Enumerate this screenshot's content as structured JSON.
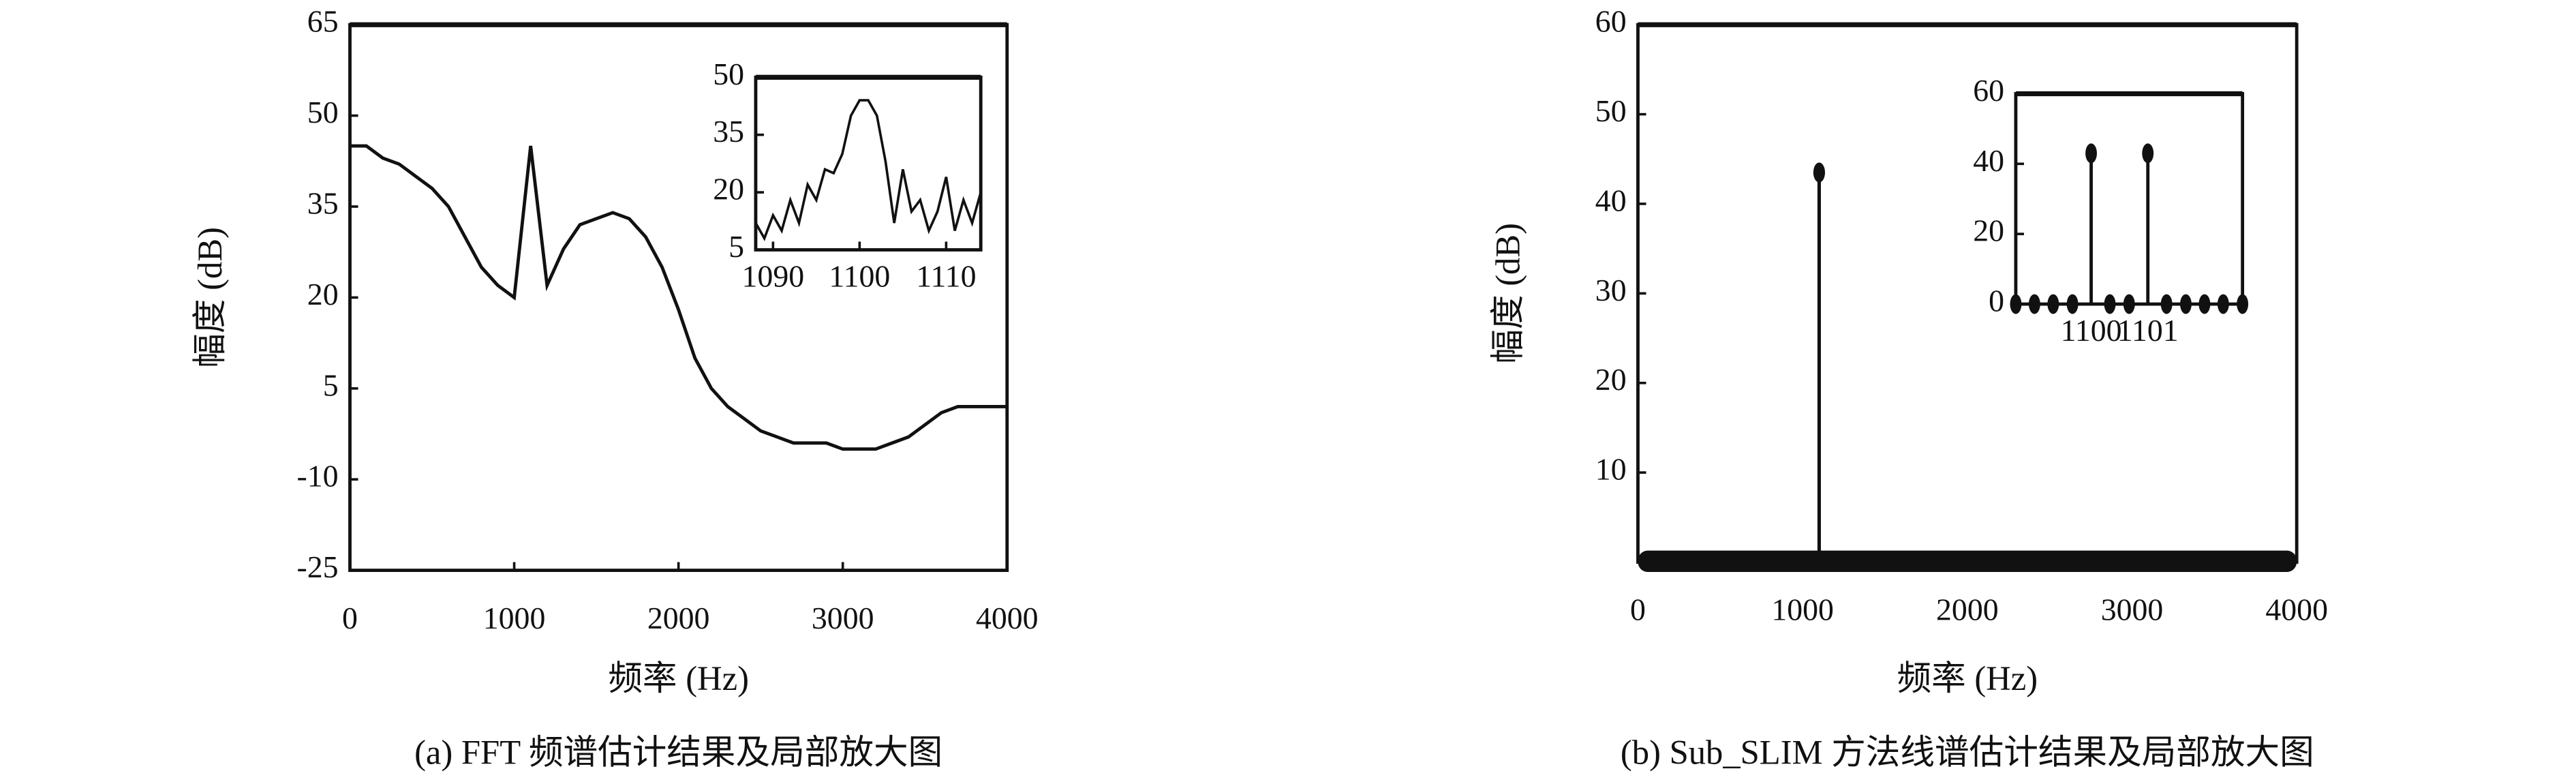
{
  "chart_data": [
    {
      "type": "line",
      "xlabel": "频率 (Hz)",
      "ylabel": "幅度 (dB)",
      "caption": "(a) FFT 频谱估计结果及局部放大图",
      "xlim": [
        0,
        4000
      ],
      "ylim": [
        -25,
        65
      ],
      "xticks": [
        0,
        1000,
        2000,
        3000,
        4000
      ],
      "yticks": [
        -25,
        -10,
        5,
        20,
        35,
        50,
        65
      ],
      "series": [
        {
          "color": "#111111",
          "x": [
            0,
            100,
            200,
            300,
            400,
            500,
            600,
            700,
            800,
            900,
            1000,
            1100,
            1200,
            1300,
            1400,
            1500,
            1600,
            1700,
            1800,
            1900,
            2000,
            2100,
            2200,
            2300,
            2400,
            2500,
            2600,
            2700,
            2800,
            2900,
            3000,
            3100,
            3200,
            3300,
            3400,
            3500,
            3600,
            3700,
            3800,
            3900,
            4000
          ],
          "values": [
            45,
            45,
            43,
            42,
            40,
            38,
            35,
            30,
            25,
            22,
            20,
            45,
            22,
            28,
            32,
            33,
            34,
            33,
            30,
            25,
            18,
            10,
            5,
            2,
            0,
            -2,
            -3,
            -4,
            -4,
            -4,
            -5,
            -5,
            -5,
            -4,
            -3,
            -1,
            1,
            2,
            2,
            2,
            2
          ]
        }
      ]
    },
    {
      "type": "line",
      "xlim": [
        1088,
        1114
      ],
      "ylim": [
        5,
        50
      ],
      "xticks": [
        1090,
        1100,
        1110
      ],
      "yticks": [
        5,
        20,
        35,
        50
      ],
      "series": [
        {
          "color": "#111111",
          "x": [
            1088,
            1089,
            1090,
            1091,
            1092,
            1093,
            1094,
            1095,
            1096,
            1097,
            1098,
            1099,
            1100,
            1101,
            1102,
            1103,
            1104,
            1105,
            1106,
            1107,
            1108,
            1109,
            1110,
            1111,
            1112,
            1113,
            1114
          ],
          "values": [
            12,
            8,
            14,
            10,
            18,
            12,
            22,
            18,
            26,
            25,
            30,
            40,
            44,
            44,
            40,
            28,
            12,
            26,
            15,
            18,
            10,
            15,
            24,
            10,
            18,
            12,
            20
          ]
        }
      ]
    },
    {
      "type": "stem",
      "xlabel": "频率 (Hz)",
      "ylabel": "幅度 (dB)",
      "caption": "(b) Sub_SLIM 方法线谱估计结果及局部放大图",
      "xlim": [
        0,
        4000
      ],
      "ylim": [
        0,
        60
      ],
      "xticks": [
        0,
        1000,
        2000,
        3000,
        4000
      ],
      "yticks": [
        10,
        20,
        30,
        40,
        50,
        60
      ],
      "series": [
        {
          "color": "#111111",
          "x": [
            1100,
            1101
          ],
          "values": [
            43.5,
            43.5
          ]
        }
      ]
    },
    {
      "type": "stem",
      "xlim": [
        1098.67,
        1102.67
      ],
      "ylim": [
        0,
        60
      ],
      "xticks": [
        1100,
        1101
      ],
      "yticks": [
        0,
        20,
        40,
        60
      ],
      "series": [
        {
          "color": "#111111",
          "x": [
            1098.67,
            1099,
            1099.33,
            1099.67,
            1100,
            1100.33,
            1100.67,
            1101,
            1101.33,
            1101.67,
            1102,
            1102.33,
            1102.67
          ],
          "values": [
            0,
            0,
            0,
            0,
            43,
            0,
            0,
            43,
            0,
            0,
            0,
            0,
            0
          ]
        }
      ]
    }
  ]
}
